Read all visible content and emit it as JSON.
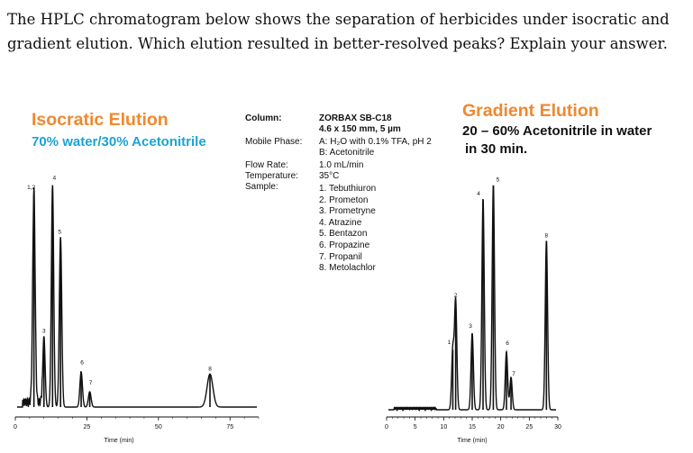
{
  "question": "The HPLC chromatogram below shows the separation of herbicides under isocratic and gradient elution. Which elution resulted in better-resolved peaks? Explain your answer.",
  "isocratic": {
    "title": "Isocratic Elution",
    "subtitle": "70% water/30% Acetonitrile"
  },
  "gradient": {
    "title": "Gradient Elution",
    "subtitle_line1": "20 – 60% Acetonitrile in water",
    "subtitle_line2": "in 30 min."
  },
  "specs": {
    "column_label": "Column:",
    "column_value_1": "ZORBAX SB-C18",
    "column_value_2": "4.6 x 150 mm, 5 µm",
    "mobile_phase_label": "Mobile Phase:",
    "mobile_phase_a": "A: H₂O with 0.1% TFA, pH 2",
    "mobile_phase_b": "B: Acetonitrile",
    "flow_rate_label": "Flow Rate:",
    "flow_rate_value": "1.0 mL/min",
    "temperature_label": "Temperature:",
    "temperature_value": "35°C",
    "sample_label": "Sample:",
    "samples": [
      "1. Tebuthiuron",
      "2. Prometon",
      "3. Prometryne",
      "4. Atrazine",
      "5. Bentazon",
      "6. Propazine",
      "7. Propanil",
      "8. Metolachlor"
    ]
  },
  "colors": {
    "isocratic_title": "#f0882e",
    "isocratic_subtitle": "#1aa3d6",
    "gradient_title": "#f0882e",
    "trace": "#111111"
  },
  "chart_data": [
    {
      "type": "line",
      "title": "Isocratic Elution",
      "xlabel": "Time (min)",
      "xlim": [
        0,
        85
      ],
      "x_ticks": [
        0,
        25,
        50,
        75
      ],
      "peaks": [
        {
          "label": "1,2",
          "x": 6.5,
          "height": 0.9
        },
        {
          "label": "3",
          "x": 10.0,
          "height": 0.3
        },
        {
          "label": "4",
          "x": 13.0,
          "height": 0.94
        },
        {
          "label": "5",
          "x": 15.8,
          "height": 0.72
        },
        {
          "label": "6",
          "x": 23.0,
          "height": 0.15
        },
        {
          "label": "7",
          "x": 26.0,
          "height": 0.065
        },
        {
          "label": "8",
          "x": 68.0,
          "height": 0.14
        }
      ]
    },
    {
      "type": "line",
      "title": "Gradient Elution",
      "xlabel": "Time (min)",
      "xlim": [
        0,
        30
      ],
      "x_ticks": [
        0,
        5,
        10,
        15,
        20,
        25,
        30
      ],
      "peaks": [
        {
          "label": "1",
          "x": 11.6,
          "height": 0.26
        },
        {
          "label": "2",
          "x": 12.1,
          "height": 0.47
        },
        {
          "label": "3",
          "x": 15.0,
          "height": 0.33
        },
        {
          "label": "4",
          "x": 16.9,
          "height": 0.91
        },
        {
          "label": "5",
          "x": 18.7,
          "height": 0.97
        },
        {
          "label": "6",
          "x": 21.0,
          "height": 0.25
        },
        {
          "label": "7",
          "x": 21.8,
          "height": 0.14
        },
        {
          "label": "8",
          "x": 28.0,
          "height": 0.73
        }
      ]
    }
  ]
}
